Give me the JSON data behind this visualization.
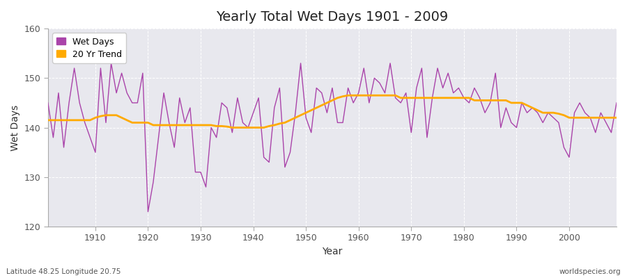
{
  "title": "Yearly Total Wet Days 1901 - 2009",
  "xlabel": "Year",
  "ylabel": "Wet Days",
  "footnote_left": "Latitude 48.25 Longitude 20.75",
  "footnote_right": "worldspecies.org",
  "legend": [
    "Wet Days",
    "20 Yr Trend"
  ],
  "wet_days_color": "#aa44aa",
  "trend_color": "#ffaa00",
  "ylim": [
    120,
    160
  ],
  "xlim": [
    1901,
    2009
  ],
  "plot_bg_color": "#e8e8ee",
  "fig_bg_color": "#ffffff",
  "years": [
    1901,
    1902,
    1903,
    1904,
    1905,
    1906,
    1907,
    1908,
    1909,
    1910,
    1911,
    1912,
    1913,
    1914,
    1915,
    1916,
    1917,
    1918,
    1919,
    1920,
    1921,
    1922,
    1923,
    1924,
    1925,
    1926,
    1927,
    1928,
    1929,
    1930,
    1931,
    1932,
    1933,
    1934,
    1935,
    1936,
    1937,
    1938,
    1939,
    1940,
    1941,
    1942,
    1943,
    1944,
    1945,
    1946,
    1947,
    1948,
    1949,
    1950,
    1951,
    1952,
    1953,
    1954,
    1955,
    1956,
    1957,
    1958,
    1959,
    1960,
    1961,
    1962,
    1963,
    1964,
    1965,
    1966,
    1967,
    1968,
    1969,
    1970,
    1971,
    1972,
    1973,
    1974,
    1975,
    1976,
    1977,
    1978,
    1979,
    1980,
    1981,
    1982,
    1983,
    1984,
    1985,
    1986,
    1987,
    1988,
    1989,
    1990,
    1991,
    1992,
    1993,
    1994,
    1995,
    1996,
    1997,
    1998,
    1999,
    2000,
    2001,
    2002,
    2003,
    2004,
    2005,
    2006,
    2007,
    2008,
    2009
  ],
  "wet_days": [
    145,
    138,
    147,
    136,
    145,
    152,
    145,
    141,
    138,
    135,
    152,
    141,
    153,
    147,
    151,
    147,
    145,
    145,
    151,
    123,
    129,
    138,
    147,
    141,
    136,
    146,
    141,
    144,
    131,
    131,
    128,
    140,
    138,
    145,
    144,
    139,
    146,
    141,
    140,
    143,
    146,
    134,
    133,
    144,
    148,
    132,
    135,
    143,
    153,
    142,
    139,
    148,
    147,
    143,
    148,
    141,
    141,
    148,
    145,
    147,
    152,
    145,
    150,
    149,
    147,
    153,
    146,
    145,
    147,
    139,
    148,
    152,
    138,
    146,
    152,
    148,
    151,
    147,
    148,
    146,
    145,
    148,
    146,
    143,
    145,
    151,
    140,
    144,
    141,
    140,
    145,
    143,
    144,
    143,
    141,
    143,
    142,
    141,
    136,
    134,
    143,
    145,
    143,
    142,
    139,
    143,
    141,
    139,
    145
  ],
  "trend": [
    141.5,
    141.5,
    141.5,
    141.5,
    141.5,
    141.5,
    141.5,
    141.5,
    141.5,
    142.0,
    142.3,
    142.5,
    142.5,
    142.5,
    142.0,
    141.5,
    141.0,
    141.0,
    141.0,
    141.0,
    140.5,
    140.5,
    140.5,
    140.5,
    140.5,
    140.5,
    140.5,
    140.5,
    140.5,
    140.5,
    140.5,
    140.5,
    140.3,
    140.3,
    140.2,
    140.0,
    140.0,
    140.0,
    140.0,
    140.0,
    140.0,
    140.0,
    140.3,
    140.5,
    140.8,
    141.0,
    141.5,
    142.0,
    142.5,
    143.0,
    143.5,
    144.0,
    144.5,
    145.0,
    145.5,
    146.0,
    146.3,
    146.5,
    146.5,
    146.5,
    146.5,
    146.5,
    146.5,
    146.5,
    146.5,
    146.5,
    146.5,
    146.0,
    146.0,
    146.0,
    146.0,
    146.0,
    146.0,
    146.0,
    146.0,
    146.0,
    146.0,
    146.0,
    146.0,
    146.0,
    146.0,
    145.5,
    145.5,
    145.5,
    145.5,
    145.5,
    145.5,
    145.5,
    145.0,
    145.0,
    145.0,
    144.5,
    144.0,
    143.5,
    143.0,
    143.0,
    143.0,
    142.8,
    142.5,
    142.0,
    142.0,
    142.0,
    142.0,
    142.0,
    142.0,
    142.0,
    142.0,
    142.0,
    142.0
  ]
}
